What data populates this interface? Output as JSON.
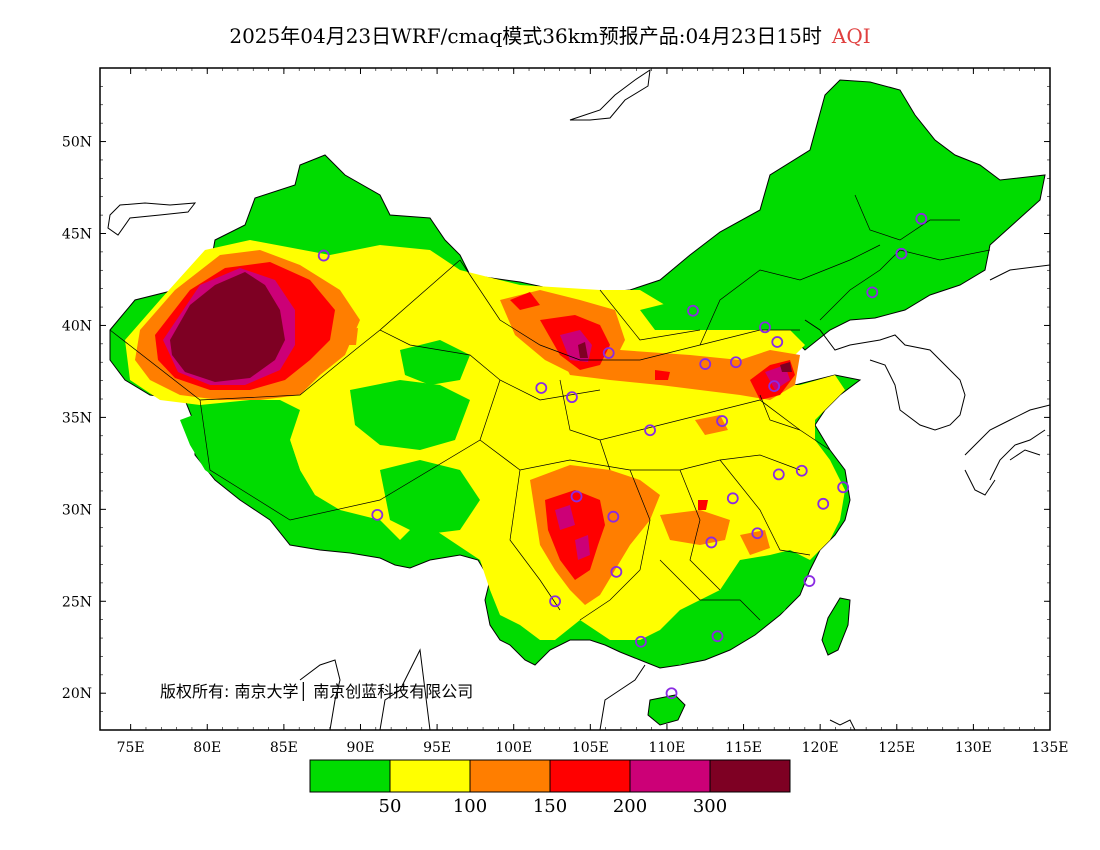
{
  "header": {
    "title": "2025年04月23日WRF/cmaq模式36km预报产品:04月23日15时",
    "variable": "AQI",
    "variable_color": "#e0403f"
  },
  "map": {
    "lon_ticks": [
      "75E",
      "80E",
      "85E",
      "90E",
      "95E",
      "100E",
      "105E",
      "110E",
      "115E",
      "120E",
      "125E",
      "130E",
      "135E"
    ],
    "lat_ticks": [
      "50N",
      "45N",
      "40N",
      "35N",
      "30N",
      "25N",
      "20N"
    ],
    "lon_range": [
      73,
      135
    ],
    "lat_range": [
      18,
      54
    ],
    "copyright": "版权所有: 南京大学│ 南京创蓝科技有限公司"
  },
  "colorbar": {
    "colors": [
      "#00dc00",
      "#ffff00",
      "#ff7e00",
      "#ff0000",
      "#cc0077",
      "#7e0023"
    ],
    "labels": [
      "50",
      "100",
      "150",
      "200",
      "300"
    ]
  },
  "stations": [
    [
      87.6,
      43.8
    ],
    [
      91.1,
      29.7
    ],
    [
      101.8,
      36.6
    ],
    [
      103.8,
      36.1
    ],
    [
      106.2,
      38.5
    ],
    [
      104.1,
      30.7
    ],
    [
      106.5,
      29.6
    ],
    [
      108.9,
      34.3
    ],
    [
      111.7,
      40.8
    ],
    [
      112.5,
      37.9
    ],
    [
      114.5,
      38.0
    ],
    [
      116.4,
      39.9
    ],
    [
      117.2,
      39.1
    ],
    [
      117.0,
      36.7
    ],
    [
      113.6,
      34.8
    ],
    [
      114.3,
      30.6
    ],
    [
      112.9,
      28.2
    ],
    [
      115.9,
      28.7
    ],
    [
      117.3,
      31.9
    ],
    [
      118.8,
      32.1
    ],
    [
      120.2,
      30.3
    ],
    [
      121.5,
      31.2
    ],
    [
      119.3,
      26.1
    ],
    [
      113.3,
      23.1
    ],
    [
      108.3,
      22.8
    ],
    [
      110.3,
      20.0
    ],
    [
      106.7,
      26.6
    ],
    [
      102.7,
      25.0
    ],
    [
      123.4,
      41.8
    ],
    [
      125.3,
      43.9
    ],
    [
      126.6,
      45.8
    ]
  ]
}
